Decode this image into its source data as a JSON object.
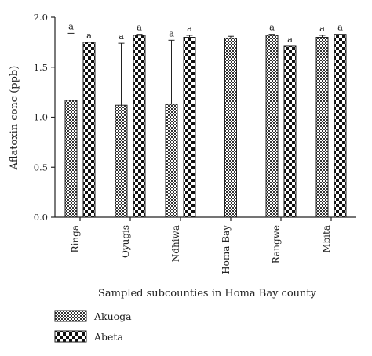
{
  "chart_data": {
    "type": "bar",
    "title": "",
    "xlabel": "Sampled subcounties in Homa Bay county",
    "ylabel": "Aflatoxin conc (ppb)",
    "ylim": [
      0,
      2.0
    ],
    "yticks": [
      "0.0",
      "0.5",
      "1.0",
      "1.5",
      "2.0"
    ],
    "categories": [
      "Ringa",
      "Oyugis",
      "Ndhiwa",
      "Homa Bay",
      "Rangwe",
      "Mbita"
    ],
    "series": [
      {
        "name": "Akuoga",
        "pattern": "fine-check",
        "values": [
          1.17,
          1.12,
          1.13,
          1.79,
          1.82,
          1.8
        ],
        "error": [
          0.67,
          0.62,
          0.64,
          0.02,
          0.01,
          0.02
        ],
        "labels": [
          "a",
          "a",
          "a",
          "",
          "a",
          "a"
        ]
      },
      {
        "name": "Abeta",
        "pattern": "coarse-check",
        "values": [
          1.75,
          1.82,
          1.8,
          null,
          1.71,
          1.83
        ],
        "error": [
          0.0,
          0.01,
          0.02,
          null,
          0.0,
          0.0
        ],
        "labels": [
          "a",
          "a",
          "a",
          "",
          "a",
          "a"
        ]
      }
    ],
    "legend_position": "bottom-left",
    "grid": false,
    "colors": {
      "ink": "#222222",
      "background": "#ffffff"
    }
  }
}
